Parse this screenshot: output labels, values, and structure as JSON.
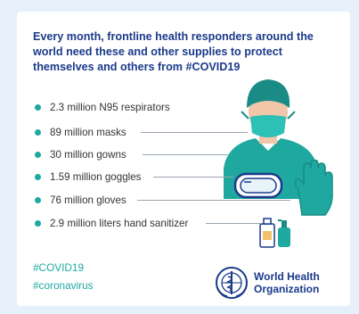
{
  "heading": "Every month, frontline health responders around the world need these and other supplies to protect themselves and others from #COVID19",
  "items": [
    {
      "label": "2.3 million N95 respirators"
    },
    {
      "label": "89 million masks"
    },
    {
      "label": "30 million gowns"
    },
    {
      "label": "1.59 million goggles"
    },
    {
      "label": "76 million gloves"
    },
    {
      "label": "2.9 million liters hand sanitizer"
    }
  ],
  "hashtags": [
    "#COVID19",
    "#coronavirus"
  ],
  "org": {
    "line1": "World Health",
    "line2": "Organization"
  },
  "colors": {
    "accent": "#1fa8a0",
    "heading": "#1a3a8a",
    "background": "#e6f0fa"
  },
  "icons": [
    "health-worker-illustration",
    "goggles-icon",
    "glove-icon",
    "sanitizer-icon",
    "who-emblem-icon"
  ]
}
